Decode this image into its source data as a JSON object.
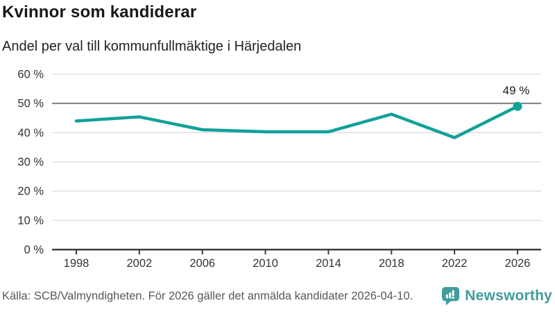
{
  "header": {
    "title": "Kvinnor som kandiderar",
    "subtitle": "Andel per val till kommunfullmäktige i Härjedalen"
  },
  "chart_data": {
    "type": "line",
    "title": "Kvinnor som kandiderar",
    "subtitle": "Andel per val till kommunfullmäktige i Härjedalen",
    "categories": [
      "1998",
      "2002",
      "2006",
      "2010",
      "2014",
      "2018",
      "2022",
      "2026"
    ],
    "values": [
      44,
      45.4,
      41,
      40.3,
      40.3,
      46.3,
      38.3,
      49
    ],
    "xlabel": "",
    "ylabel": "",
    "ylim": [
      0,
      60
    ],
    "yticks": [
      0,
      10,
      20,
      30,
      40,
      50,
      60
    ],
    "ytick_suffix": " %",
    "grid": true,
    "highlight_gridline": 50,
    "legend": false,
    "marker_on_last_point": true,
    "annotation": {
      "text": "49 %",
      "at_category": "2026"
    }
  },
  "footer": {
    "source": "Källa: SCB/Valmyndigheten. För 2026 gäller det anmälda kandidater 2026-04-10.",
    "logo_text": "Newsworthy"
  },
  "colors": {
    "accent": "#10a199",
    "logo_teal": "#419c9c",
    "grid_light": "#dcdcdc",
    "grid_dark": "#7e7e7e",
    "axis": "#3d3d3d",
    "tick_text": "#333333",
    "annotation_text": "#1a1a1a"
  }
}
